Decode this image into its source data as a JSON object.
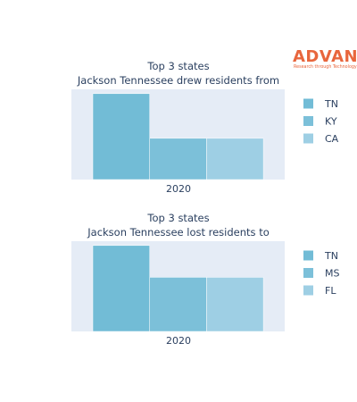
{
  "logo": {
    "name": "ADVAN",
    "tagline": "Research through Technology",
    "color": "#e8663d"
  },
  "chart_data": [
    {
      "type": "bar",
      "title_lines": [
        "Top 3 states",
        "Jackson Tennessee drew residents from"
      ],
      "categories": [
        "2020"
      ],
      "series": [
        {
          "name": "TN",
          "values": [
            100
          ],
          "color": "#72bcd6"
        },
        {
          "name": "KY",
          "values": [
            48
          ],
          "color": "#7cc0d9"
        },
        {
          "name": "CA",
          "values": [
            48
          ],
          "color": "#9ecfe4"
        }
      ],
      "ylim": [
        0,
        105
      ],
      "grid": false,
      "legend": "right"
    },
    {
      "type": "bar",
      "title_lines": [
        "Top 3 states",
        "Jackson Tennessee lost residents to"
      ],
      "categories": [
        "2020"
      ],
      "series": [
        {
          "name": "TN",
          "values": [
            100
          ],
          "color": "#72bcd6"
        },
        {
          "name": "MS",
          "values": [
            63
          ],
          "color": "#7cc0d9"
        },
        {
          "name": "FL",
          "values": [
            63
          ],
          "color": "#9ecfe4"
        }
      ],
      "ylim": [
        0,
        105
      ],
      "grid": false,
      "legend": "right"
    }
  ]
}
